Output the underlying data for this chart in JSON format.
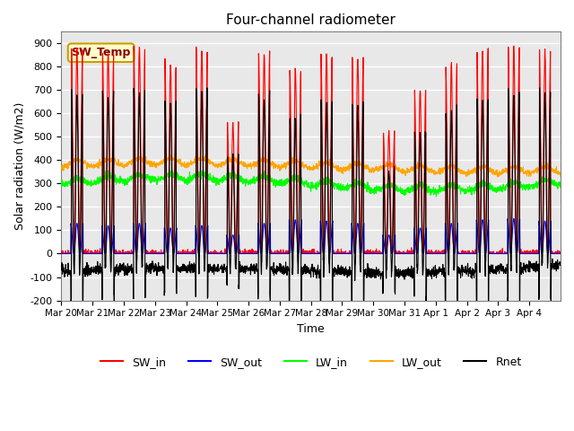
{
  "title": "Four-channel radiometer",
  "xlabel": "Time",
  "ylabel": "Solar radiation (W/m2)",
  "ylim": [
    -200,
    950
  ],
  "yticks": [
    -200,
    -100,
    0,
    100,
    200,
    300,
    400,
    500,
    600,
    700,
    800,
    900
  ],
  "x_tick_labels": [
    "Mar 20",
    "Mar 21",
    "Mar 22",
    "Mar 23",
    "Mar 24",
    "Mar 25",
    "Mar 26",
    "Mar 27",
    "Mar 28",
    "Mar 29",
    "Mar 30",
    "Mar 31",
    "Apr 1",
    "Apr 2",
    "Apr 3",
    "Apr 4"
  ],
  "annotation_text": "SW_Temp",
  "annotation_color": "#c8a000",
  "annotation_bg": "#ffffcc",
  "legend_entries": [
    "SW_in",
    "SW_out",
    "LW_in",
    "LW_out",
    "Rnet"
  ],
  "legend_colors": [
    "red",
    "blue",
    "lime",
    "orange",
    "black"
  ],
  "bg_color": "#e8e8e8",
  "line_colors": {
    "SW_in": "red",
    "SW_out": "blue",
    "LW_in": "#00ff00",
    "LW_out": "orange",
    "Rnet": "black"
  },
  "sw_in_peaks": [
    880,
    860,
    880,
    810,
    870,
    560,
    860,
    790,
    855,
    840,
    530,
    700,
    810,
    870,
    890,
    870
  ],
  "sw_out_peaks": [
    130,
    120,
    130,
    110,
    120,
    80,
    130,
    145,
    140,
    130,
    80,
    110,
    130,
    145,
    150,
    140
  ]
}
